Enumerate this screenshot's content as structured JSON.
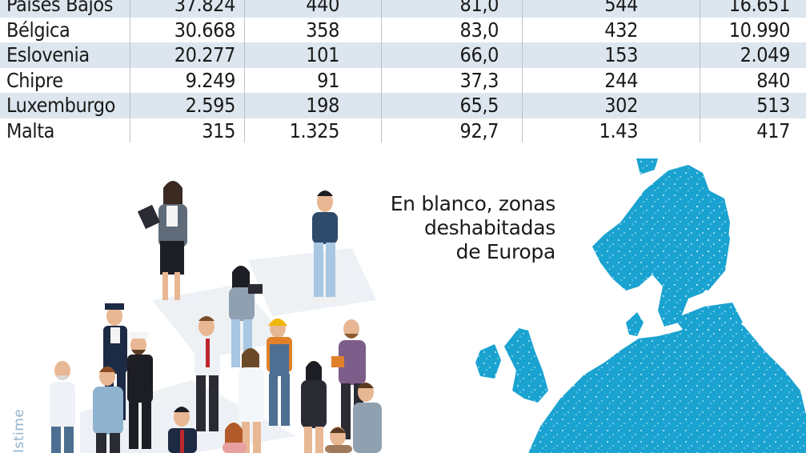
{
  "table": {
    "rows": [
      {
        "country": "Países Bajos",
        "c1": "37.824",
        "c2": "440",
        "c3": "81,0",
        "c4": "544",
        "c5": "16.651",
        "shaded": true
      },
      {
        "country": "Bélgica",
        "c1": "30.668",
        "c2": "358",
        "c3": "83,0",
        "c4": "432",
        "c5": "10.990",
        "shaded": false
      },
      {
        "country": "Eslovenia",
        "c1": "20.277",
        "c2": "101",
        "c3": "66,0",
        "c4": "153",
        "c5": "2.049",
        "shaded": true
      },
      {
        "country": "Chipre",
        "c1": "9.249",
        "c2": "91",
        "c3": "37,3",
        "c4": "244",
        "c5": "840",
        "shaded": false
      },
      {
        "country": "Luxemburgo",
        "c1": "2.595",
        "c2": "198",
        "c3": "65,5",
        "c4": "302",
        "c5": "513",
        "shaded": true
      },
      {
        "country": "Malta",
        "c1": "315",
        "c2": "1.325",
        "c3": "92,7",
        "c4": "1.43",
        "c5": "417",
        "shaded": false
      }
    ]
  },
  "map": {
    "caption_lines": [
      "En blanco, zonas",
      "deshabitadas",
      "de Europa"
    ],
    "land_color": "#1aa3d1"
  },
  "illustration": {
    "credit": "Istime",
    "credit_color": "#8fb3cf"
  }
}
